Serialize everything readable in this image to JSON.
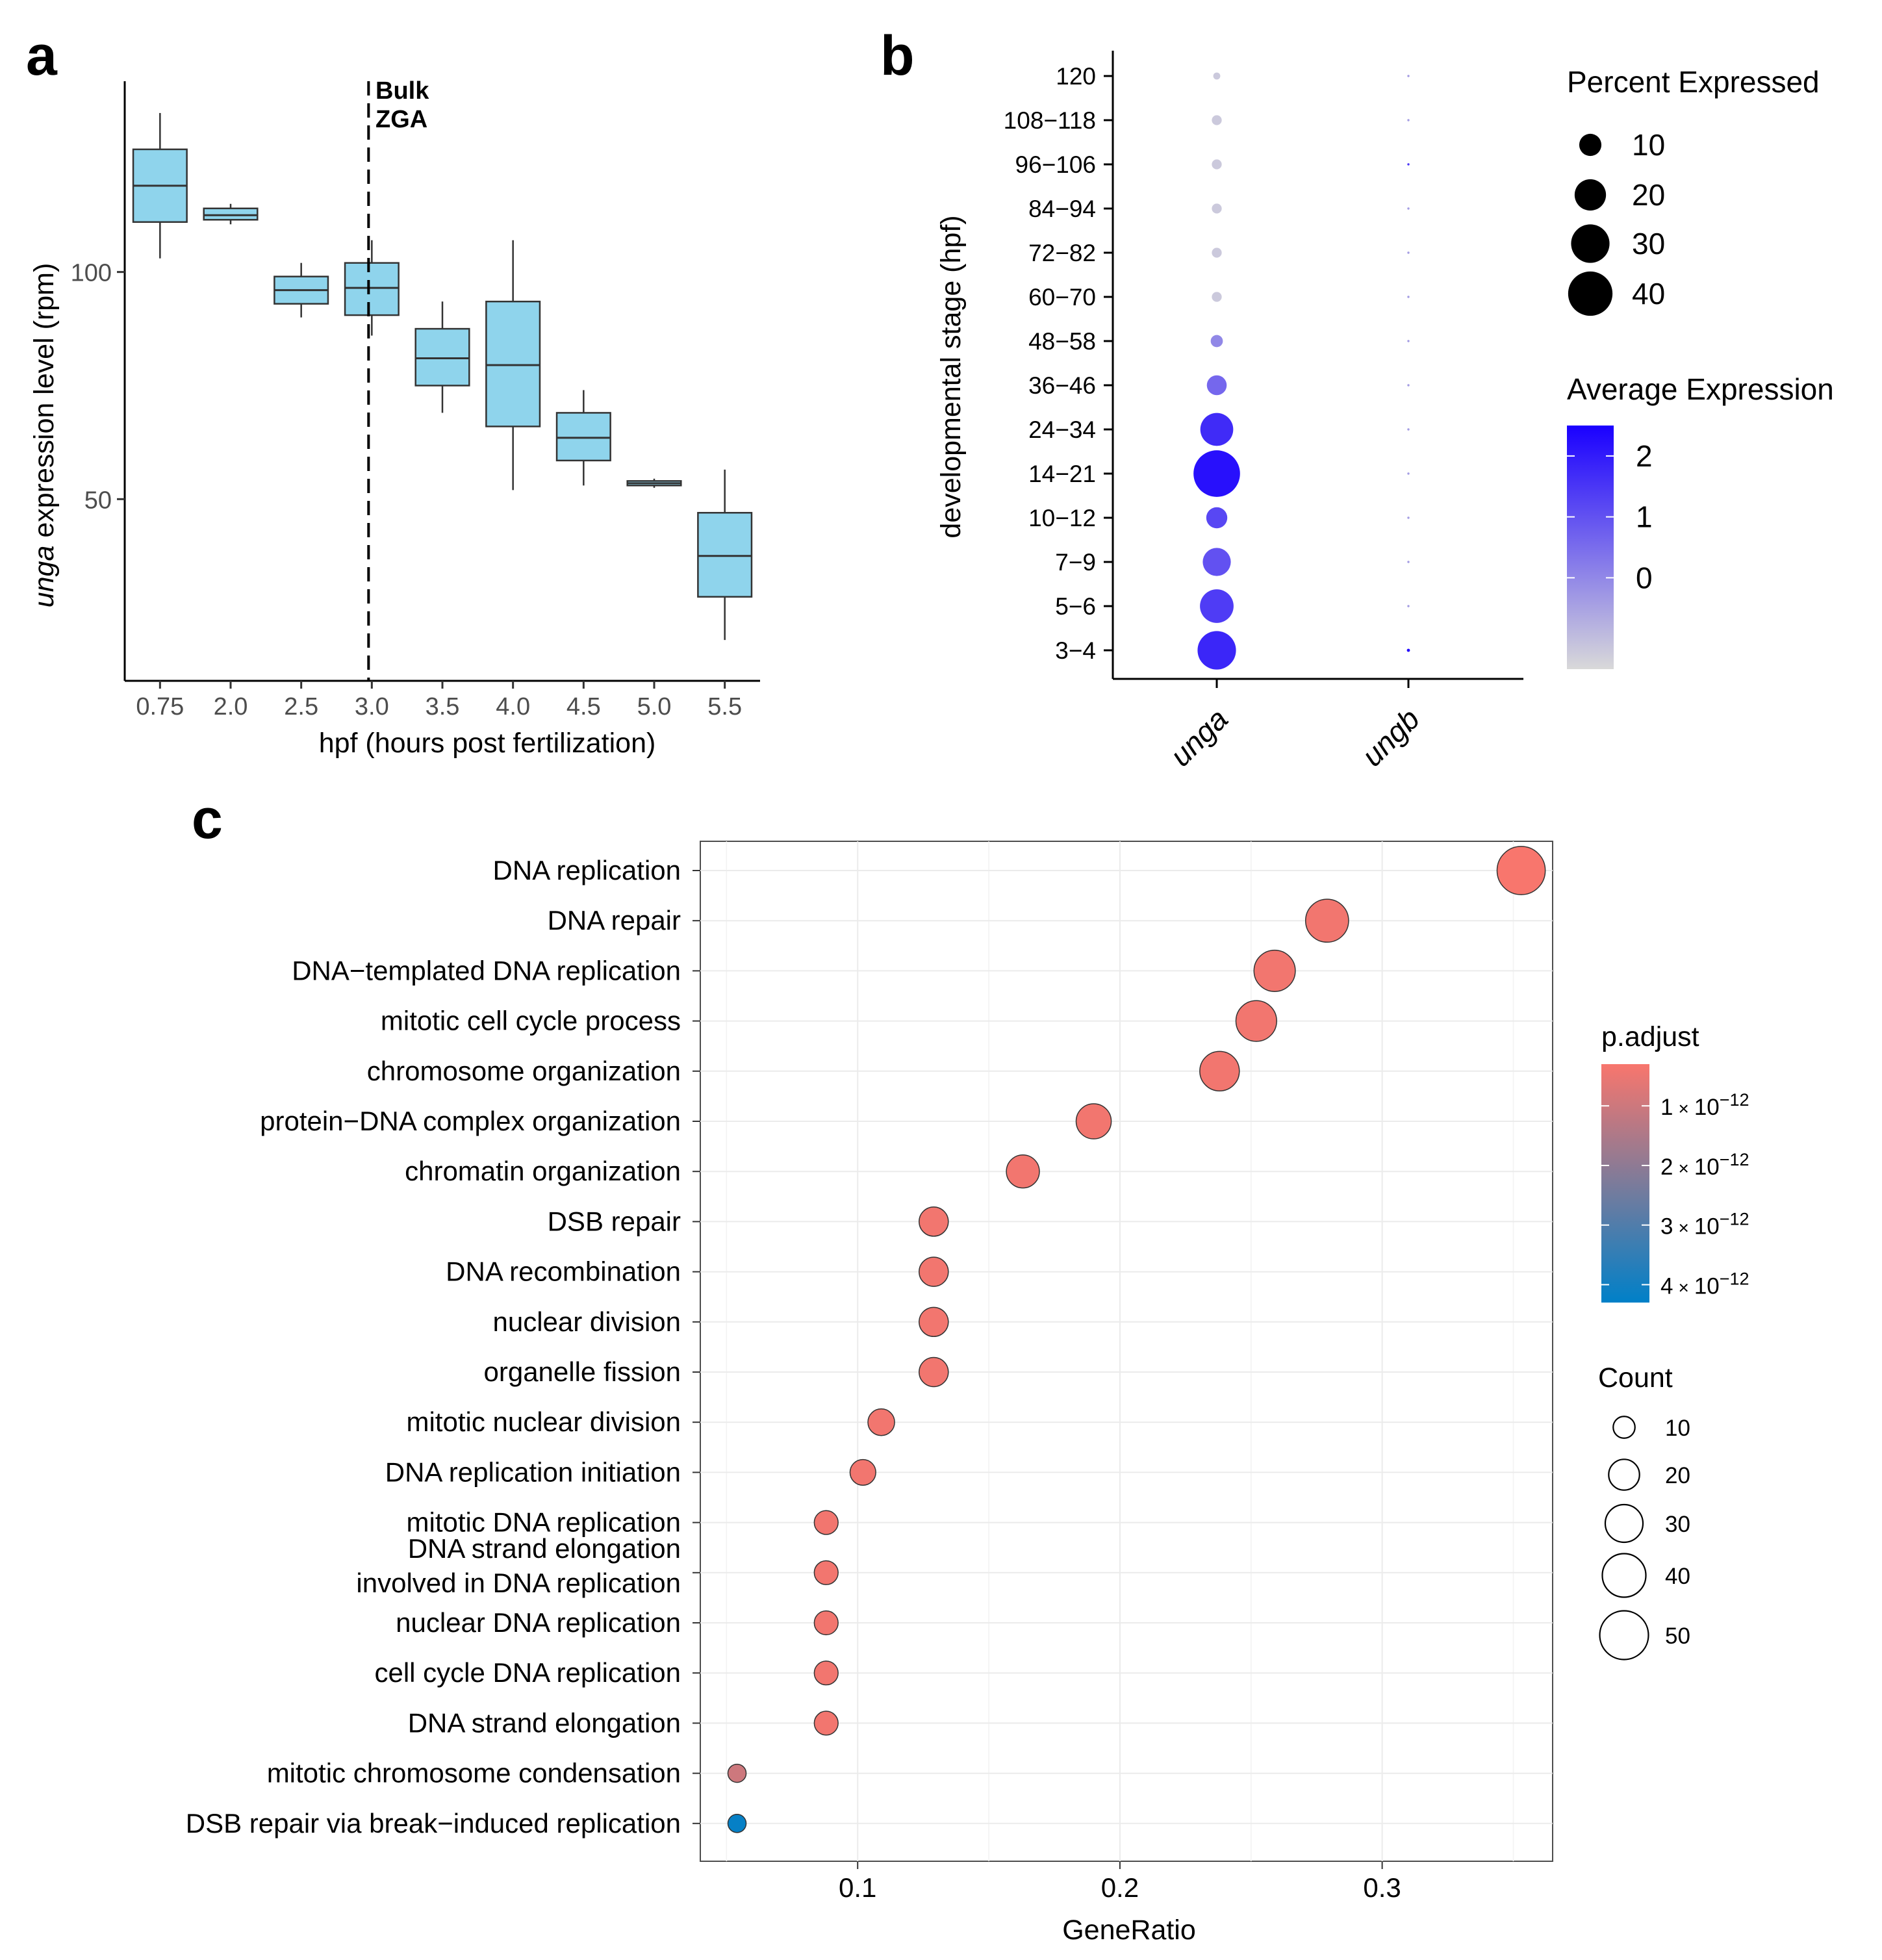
{
  "panels": {
    "a": "a",
    "b": "b",
    "c": "c"
  },
  "chart_data": [
    {
      "panel": "a",
      "type": "box",
      "xlabel": "hpf (hours post fertilization)",
      "ylabel_italic": "unga",
      "ylabel_rest": " expression level (rpm)",
      "categories": [
        "0.75",
        "2.0",
        "2.5",
        "3.0",
        "3.5",
        "4.0",
        "4.5",
        "5.0",
        "5.5"
      ],
      "boxes": [
        {
          "category": "0.75",
          "min": 103,
          "q1": 111,
          "median": 119,
          "q3": 127,
          "max": 135
        },
        {
          "category": "2.0",
          "min": 110.5,
          "q1": 111.5,
          "median": 112.5,
          "q3": 114,
          "max": 115
        },
        {
          "category": "2.5",
          "min": 90,
          "q1": 93,
          "median": 96,
          "q3": 99,
          "max": 102
        },
        {
          "category": "3.0",
          "min": 86,
          "q1": 90.5,
          "median": 96.5,
          "q3": 102,
          "max": 107
        },
        {
          "category": "3.5",
          "min": 69,
          "q1": 75,
          "median": 81,
          "q3": 87.5,
          "max": 93.5
        },
        {
          "category": "4.0",
          "min": 52,
          "q1": 66,
          "median": 79.5,
          "q3": 93.5,
          "max": 107
        },
        {
          "category": "4.5",
          "min": 53,
          "q1": 58.5,
          "median": 63.5,
          "q3": 69,
          "max": 74
        },
        {
          "category": "5.0",
          "min": 52.5,
          "q1": 53,
          "median": 53.5,
          "q3": 54,
          "max": 54.5
        },
        {
          "category": "5.5",
          "min": 19,
          "q1": 28.5,
          "median": 37.5,
          "q3": 47,
          "max": 56.5
        }
      ],
      "ylim": [
        10,
        142
      ],
      "yticks": [
        50,
        100
      ],
      "vline": {
        "x": "3.0",
        "label_lines": [
          "Bulk",
          "ZGA"
        ],
        "style": "dashed"
      },
      "colors": {
        "box_fill": "#8fd4ec",
        "box_edge": "#333333",
        "dashed_line": "#000000"
      }
    },
    {
      "panel": "b",
      "type": "scatter",
      "subtype": "dot plot",
      "ylabel": "developmental stage (hpf)",
      "genes": [
        "unga",
        "ungb"
      ],
      "stages": [
        "120",
        "108−118",
        "96−106",
        "84−94",
        "72−82",
        "60−70",
        "48−58",
        "36−46",
        "24−34",
        "14−21",
        "10−12",
        "7−9",
        "5−6",
        "3−4"
      ],
      "percent_expressed": {
        "unga": [
          1,
          2,
          2,
          2,
          2,
          2,
          3,
          8,
          22,
          44,
          9,
          16,
          23,
          30
        ],
        "ungb": [
          0.1,
          0.1,
          0.1,
          0.1,
          0.1,
          0.1,
          0.1,
          0.1,
          0.1,
          0.1,
          0.1,
          0.1,
          0.1,
          0.2
        ]
      },
      "average_expression": {
        "unga": [
          -1.2,
          -1.2,
          -1.2,
          -1.2,
          -1.2,
          -1.2,
          0.0,
          0.6,
          1.7,
          2.2,
          1.2,
          1.0,
          1.4,
          1.8
        ],
        "ungb": [
          -0.4,
          -0.4,
          1.5,
          -0.4,
          -0.4,
          -0.4,
          -0.4,
          -0.4,
          -0.4,
          -0.4,
          -0.4,
          -0.4,
          -0.4,
          2.3
        ]
      },
      "legend_size": {
        "title": "Percent Expressed",
        "values": [
          10,
          20,
          30,
          40
        ]
      },
      "legend_color": {
        "title": "Average Expression",
        "ticks": [
          "2",
          "1",
          "0"
        ],
        "low": "#d9d9d9",
        "high": "#1a00ff",
        "range": [
          -1.5,
          2.5
        ]
      }
    },
    {
      "panel": "c",
      "type": "scatter",
      "subtype": "dot plot",
      "xlabel": "GeneRatio",
      "xlim": [
        0.04,
        0.365
      ],
      "xticks": [
        "0.1",
        "0.2",
        "0.3"
      ],
      "xtick_values": [
        0.1,
        0.2,
        0.3
      ],
      "terms": [
        {
          "label": [
            "DNA replication"
          ],
          "gene_ratio": 0.353,
          "count": 49,
          "p_adjust": 3e-13
        },
        {
          "label": [
            "DNA repair"
          ],
          "gene_ratio": 0.279,
          "count": 39,
          "p_adjust": 4e-13
        },
        {
          "label": [
            "DNA−templated DNA replication"
          ],
          "gene_ratio": 0.259,
          "count": 36,
          "p_adjust": 4e-13
        },
        {
          "label": [
            "mitotic cell cycle process"
          ],
          "gene_ratio": 0.252,
          "count": 35,
          "p_adjust": 4e-13
        },
        {
          "label": [
            "chromosome organization"
          ],
          "gene_ratio": 0.238,
          "count": 33,
          "p_adjust": 4e-13
        },
        {
          "label": [
            "protein−DNA complex organization"
          ],
          "gene_ratio": 0.19,
          "count": 26,
          "p_adjust": 4e-13
        },
        {
          "label": [
            "chromatin organization"
          ],
          "gene_ratio": 0.163,
          "count": 23,
          "p_adjust": 4e-13
        },
        {
          "label": [
            "DSB repair"
          ],
          "gene_ratio": 0.129,
          "count": 18,
          "p_adjust": 4e-13
        },
        {
          "label": [
            "DNA recombination"
          ],
          "gene_ratio": 0.129,
          "count": 18,
          "p_adjust": 4e-13
        },
        {
          "label": [
            "nuclear division"
          ],
          "gene_ratio": 0.129,
          "count": 18,
          "p_adjust": 4e-13
        },
        {
          "label": [
            "organelle fission"
          ],
          "gene_ratio": 0.129,
          "count": 18,
          "p_adjust": 4e-13
        },
        {
          "label": [
            "mitotic nuclear division"
          ],
          "gene_ratio": 0.109,
          "count": 15,
          "p_adjust": 4e-13
        },
        {
          "label": [
            "DNA replication initiation"
          ],
          "gene_ratio": 0.102,
          "count": 14,
          "p_adjust": 4e-13
        },
        {
          "label": [
            "mitotic DNA replication"
          ],
          "gene_ratio": 0.088,
          "count": 12,
          "p_adjust": 4e-13
        },
        {
          "label": [
            "DNA strand elongation",
            "involved in DNA replication"
          ],
          "gene_ratio": 0.088,
          "count": 12,
          "p_adjust": 4e-13
        },
        {
          "label": [
            "nuclear DNA replication"
          ],
          "gene_ratio": 0.088,
          "count": 12,
          "p_adjust": 4e-13
        },
        {
          "label": [
            "cell cycle DNA replication"
          ],
          "gene_ratio": 0.088,
          "count": 12,
          "p_adjust": 4e-13
        },
        {
          "label": [
            "DNA strand elongation"
          ],
          "gene_ratio": 0.088,
          "count": 12,
          "p_adjust": 4e-13
        },
        {
          "label": [
            "mitotic chromosome condensation"
          ],
          "gene_ratio": 0.054,
          "count": 7,
          "p_adjust": 1e-12
        },
        {
          "label": [
            "DSB repair via break−induced replication"
          ],
          "gene_ratio": 0.054,
          "count": 7,
          "p_adjust": 4.2e-12
        }
      ],
      "legend_color": {
        "title": "p.adjust",
        "ticks": [
          {
            "coef": "1",
            "times": "×",
            "base": "10",
            "exp": "−12",
            "value": 1e-12
          },
          {
            "coef": "2",
            "times": "×",
            "base": "10",
            "exp": "−12",
            "value": 2e-12
          },
          {
            "coef": "3",
            "times": "×",
            "base": "10",
            "exp": "−12",
            "value": 3e-12
          },
          {
            "coef": "4",
            "times": "×",
            "base": "10",
            "exp": "−12",
            "value": 4e-12
          }
        ],
        "low": "#f8766d",
        "high": "#0080c8",
        "range": [
          3e-13,
          4.3e-12
        ]
      },
      "legend_size": {
        "title": "Count",
        "values": [
          10,
          20,
          30,
          40,
          50
        ]
      }
    }
  ]
}
